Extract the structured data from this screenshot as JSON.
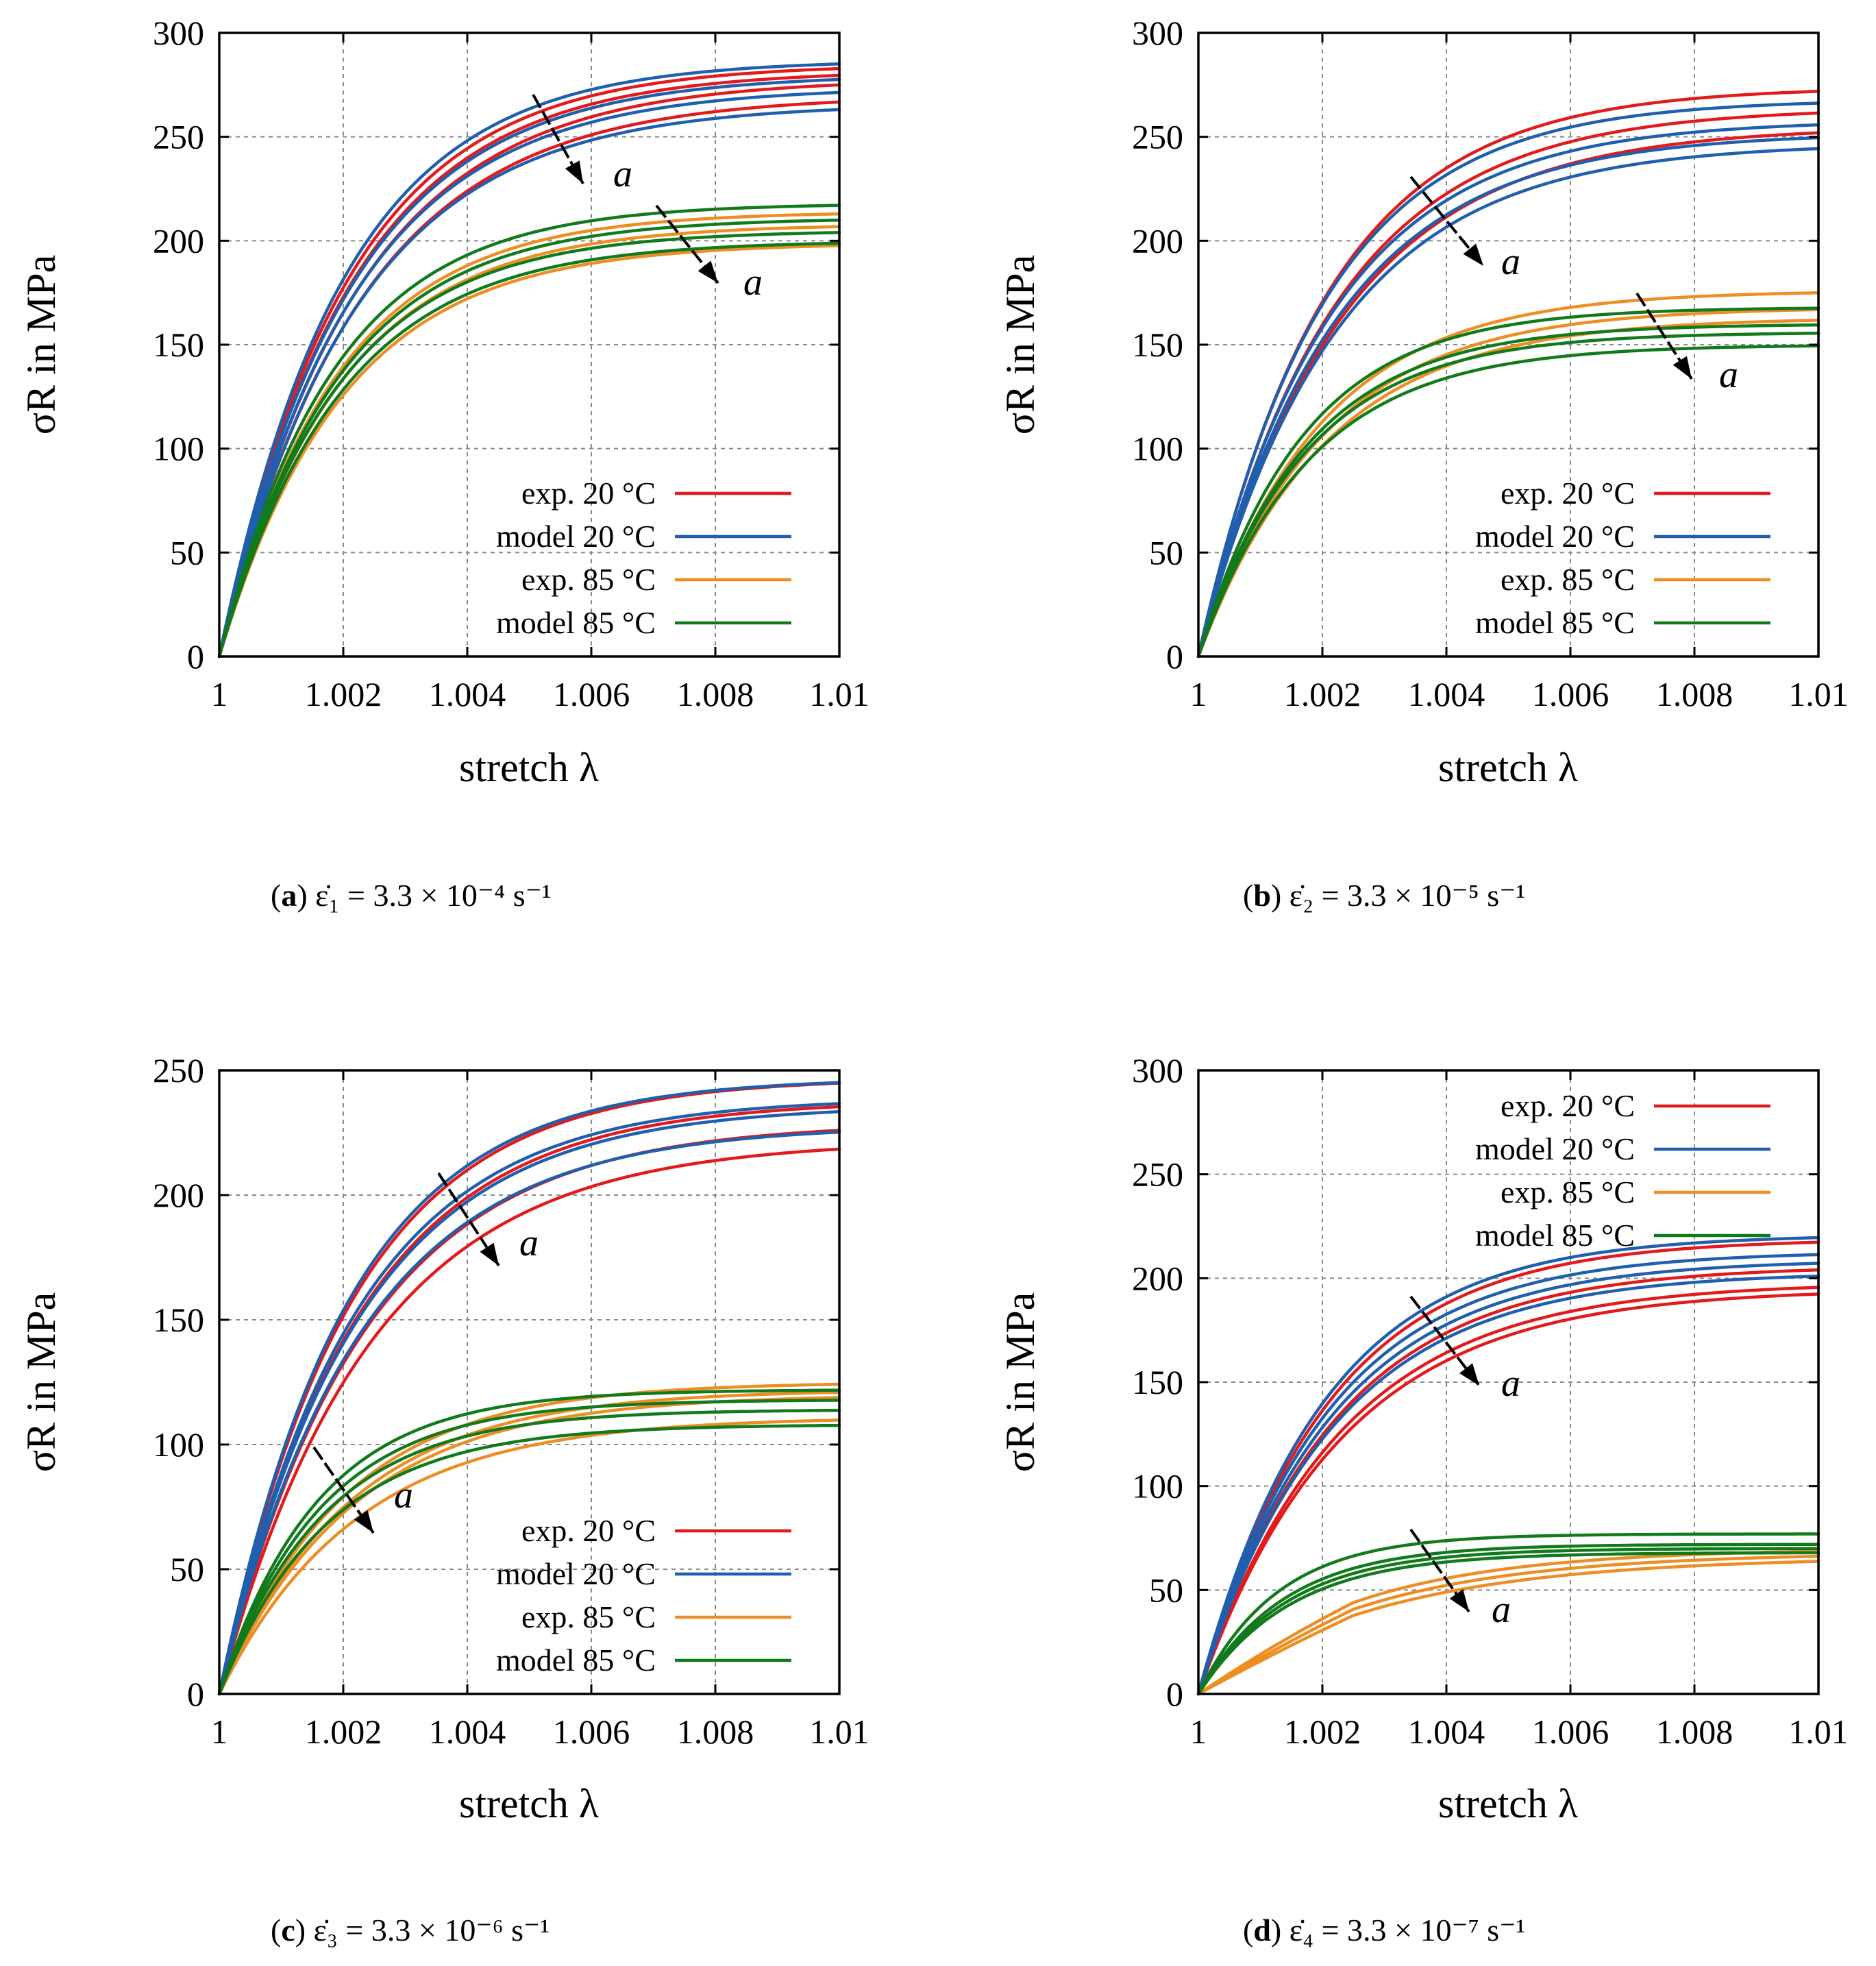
{
  "colors": {
    "exp20": "#e31a1c",
    "model20": "#1f5fae",
    "exp85": "#ec8e24",
    "model85": "#117a1c"
  },
  "chart_data": [
    {
      "id": "a",
      "type": "line",
      "caption_letter": "a",
      "caption_eq": "ε̇₁ = 3.3 × 10⁻⁴ s⁻¹",
      "xlabel": "stretch λ",
      "ylabel": "σR in MPa",
      "xlim": [
        1,
        1.01
      ],
      "ylim": [
        0,
        300
      ],
      "xticks": [
        "1",
        "1.002",
        "1.004",
        "1.006",
        "1.008",
        "1.01"
      ],
      "yticks": [
        "0",
        "50",
        "100",
        "150",
        "200",
        "250",
        "300"
      ],
      "grid": true,
      "legend_position": "lower-right",
      "legend": [
        "exp. 20 °C",
        "model 20 °C",
        "exp. 85 °C",
        "model 85 °C"
      ],
      "annotation": "a",
      "series": [
        {
          "name": "exp. 20 °C",
          "curves": [
            [
              282,
              2.0
            ],
            [
              278,
              2.1
            ],
            [
              270,
              2.15
            ],
            [
              285,
              1.95
            ]
          ]
        },
        {
          "name": "model 20 °C",
          "curves": [
            [
              287,
              1.9
            ],
            [
              274,
              2.05
            ],
            [
              266,
              2.1
            ],
            [
              280,
              2.0
            ]
          ]
        },
        {
          "name": "exp. 85 °C",
          "curves": [
            [
              214,
              1.8
            ],
            [
              208,
              1.85
            ],
            [
              199,
              1.9
            ]
          ]
        },
        {
          "name": "model 85 °C",
          "curves": [
            [
              218,
              1.75
            ],
            [
              211,
              1.8
            ],
            [
              200,
              1.85
            ],
            [
              205,
              1.8
            ]
          ]
        }
      ]
    },
    {
      "id": "b",
      "type": "line",
      "caption_letter": "b",
      "caption_eq": "ε̇₂ = 3.3 × 10⁻⁵ s⁻¹",
      "xlabel": "stretch λ",
      "ylabel": "σR in MPa",
      "xlim": [
        1,
        1.01
      ],
      "ylim": [
        0,
        300
      ],
      "xticks": [
        "1",
        "1.002",
        "1.004",
        "1.006",
        "1.008",
        "1.01"
      ],
      "yticks": [
        "0",
        "50",
        "100",
        "150",
        "200",
        "250",
        "300"
      ],
      "grid": true,
      "legend_position": "lower-right",
      "legend": [
        "exp. 20 °C",
        "model 20 °C",
        "exp. 85 °C",
        "model 85 °C"
      ],
      "annotation": "a",
      "series": [
        {
          "name": "exp. 20 °C",
          "curves": [
            [
              274,
              1.95
            ],
            [
              264,
              2.05
            ],
            [
              255,
              2.15
            ]
          ]
        },
        {
          "name": "model 20 °C",
          "curves": [
            [
              268,
              1.9
            ],
            [
              258,
              2.0
            ],
            [
              247,
              2.1
            ],
            [
              252,
              2.05
            ]
          ]
        },
        {
          "name": "exp. 85 °C",
          "curves": [
            [
              176,
              1.85
            ],
            [
              168,
              1.9
            ],
            [
              163,
              1.95
            ]
          ]
        },
        {
          "name": "model 85 °C",
          "curves": [
            [
              168,
              1.6
            ],
            [
              160,
              1.65
            ],
            [
              150,
              1.7
            ],
            [
              156,
              1.65
            ]
          ]
        }
      ]
    },
    {
      "id": "c",
      "type": "line",
      "caption_letter": "c",
      "caption_eq": "ε̇₃ = 3.3 × 10⁻⁶ s⁻¹",
      "xlabel": "stretch λ",
      "ylabel": "σR in MPa",
      "xlim": [
        1,
        1.01
      ],
      "ylim": [
        0,
        250
      ],
      "xticks": [
        "1",
        "1.002",
        "1.004",
        "1.006",
        "1.008",
        "1.01"
      ],
      "yticks": [
        "0",
        "50",
        "100",
        "150",
        "200",
        "250"
      ],
      "grid": true,
      "legend_position": "lower-right",
      "legend": [
        "exp. 20 °C",
        "model 20 °C",
        "exp. 85 °C",
        "model 85 °C"
      ],
      "annotation": "a",
      "series": [
        {
          "name": "exp. 20 °C",
          "curves": [
            [
              247,
              2.0
            ],
            [
              238,
              2.1
            ],
            [
              229,
              2.2
            ],
            [
              222,
              2.3
            ]
          ]
        },
        {
          "name": "model 20 °C",
          "curves": [
            [
              247,
              1.95
            ],
            [
              239,
              2.05
            ],
            [
              236,
              2.1
            ],
            [
              228,
              2.15
            ]
          ]
        },
        {
          "name": "exp. 85 °C",
          "curves": [
            [
              125,
              1.9
            ],
            [
              122,
              2.0
            ],
            [
              120,
              2.05
            ],
            [
              111,
              2.1
            ]
          ]
        },
        {
          "name": "model 85 °C",
          "curves": [
            [
              122,
              1.5
            ],
            [
              118,
              1.55
            ],
            [
              114,
              1.6
            ],
            [
              108,
              1.65
            ]
          ]
        }
      ]
    },
    {
      "id": "d",
      "type": "line",
      "caption_letter": "d",
      "caption_eq": "ε̇₄ = 3.3 × 10⁻⁷ s⁻¹",
      "xlabel": "stretch λ",
      "ylabel": "σR in MPa",
      "xlim": [
        1,
        1.01
      ],
      "ylim": [
        0,
        300
      ],
      "xticks": [
        "1",
        "1.002",
        "1.004",
        "1.006",
        "1.008",
        "1.01"
      ],
      "yticks": [
        "0",
        "50",
        "100",
        "150",
        "200",
        "250",
        "300"
      ],
      "grid": true,
      "legend_position": "top-right",
      "legend": [
        "exp. 20 °C",
        "model 20 °C",
        "exp. 85 °C",
        "model 85 °C"
      ],
      "annotation": "a",
      "series": [
        {
          "name": "exp. 20 °C",
          "curves": [
            [
              219,
              1.95
            ],
            [
              206,
              2.05
            ],
            [
              198,
              2.15
            ],
            [
              195,
              2.2
            ]
          ]
        },
        {
          "name": "model 20 °C",
          "curves": [
            [
              221,
              1.9
            ],
            [
              213,
              1.95
            ],
            [
              209,
              2.0
            ],
            [
              203,
              2.05
            ]
          ]
        },
        {
          "name": "exp. 85 °C",
          "curves": [
            [
              70,
              2.4
            ],
            [
              68,
              2.6
            ],
            [
              66,
              2.8
            ]
          ]
        },
        {
          "name": "model 85 °C",
          "curves": [
            [
              77,
              1.2
            ],
            [
              72,
              1.3
            ],
            [
              70,
              1.35
            ],
            [
              68,
              1.4
            ]
          ]
        }
      ]
    }
  ]
}
